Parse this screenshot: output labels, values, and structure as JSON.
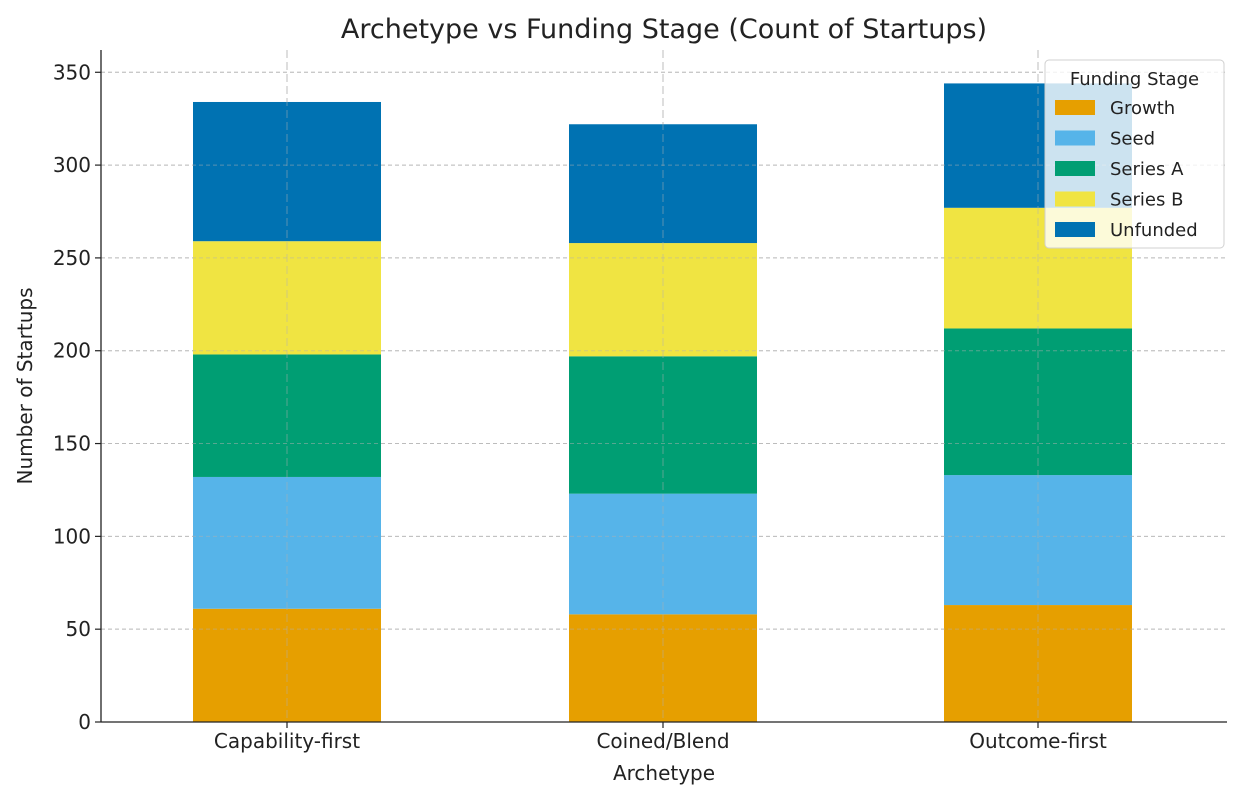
{
  "chart_data": {
    "type": "bar",
    "stacked": true,
    "title": "Archetype vs Funding Stage (Count of Startups)",
    "xlabel": "Archetype",
    "ylabel": "Number of Startups",
    "ylim": [
      0,
      362
    ],
    "yticks": [
      0,
      50,
      100,
      150,
      200,
      250,
      300,
      350
    ],
    "grid": true,
    "legend": {
      "title": "Funding Stage",
      "position": "top-right"
    },
    "categories": [
      "Capability-first",
      "Coined/Blend",
      "Outcome-first"
    ],
    "series": [
      {
        "name": "Growth",
        "color": "#E69F00",
        "values": [
          61,
          58,
          63
        ]
      },
      {
        "name": "Seed",
        "color": "#56B4E9",
        "values": [
          71,
          65,
          70
        ]
      },
      {
        "name": "Series A",
        "color": "#009E73",
        "values": [
          66,
          74,
          79
        ]
      },
      {
        "name": "Series B",
        "color": "#F0E442",
        "values": [
          61,
          61,
          65
        ]
      },
      {
        "name": "Unfunded",
        "color": "#0072B2",
        "values": [
          75,
          64,
          67
        ]
      }
    ]
  }
}
